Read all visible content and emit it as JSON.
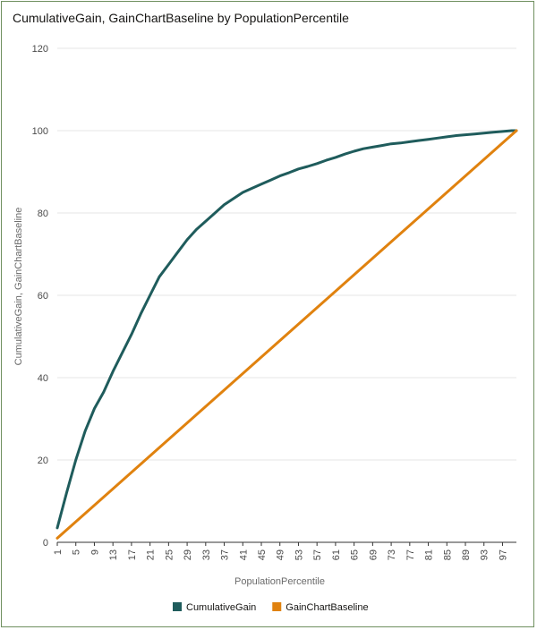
{
  "chart_data": {
    "type": "line",
    "title": "CumulativeGain, GainChartBaseline by PopulationPercentile",
    "xlabel": "PopulationPercentile",
    "ylabel": "CumulativeGain, GainChartBaseline",
    "ylim": [
      0,
      120
    ],
    "yticks": [
      0,
      20,
      40,
      60,
      80,
      100,
      120
    ],
    "xlim": [
      1,
      100
    ],
    "xticks": [
      1,
      5,
      9,
      13,
      17,
      21,
      25,
      29,
      33,
      37,
      41,
      45,
      49,
      53,
      57,
      61,
      65,
      69,
      73,
      77,
      81,
      85,
      89,
      93,
      97
    ],
    "grid": true,
    "legend_position": "bottom",
    "colors": {
      "CumulativeGain": "#1f5c5c",
      "GainChartBaseline": "#e0820f"
    },
    "series": [
      {
        "name": "CumulativeGain",
        "x": [
          1,
          3,
          5,
          7,
          9,
          11,
          13,
          15,
          17,
          19,
          21,
          23,
          25,
          27,
          29,
          31,
          33,
          35,
          37,
          39,
          41,
          43,
          45,
          47,
          49,
          51,
          53,
          55,
          57,
          59,
          61,
          63,
          65,
          67,
          69,
          71,
          73,
          75,
          77,
          79,
          81,
          83,
          85,
          87,
          89,
          91,
          93,
          95,
          97,
          99,
          100
        ],
        "values": [
          3.5,
          12,
          20,
          27,
          32.5,
          36.5,
          41.5,
          46,
          50.5,
          55.5,
          60,
          64.5,
          67.5,
          70.5,
          73.5,
          76,
          78,
          80,
          82,
          83.5,
          85,
          86,
          87,
          88,
          89,
          89.8,
          90.7,
          91.3,
          92,
          92.8,
          93.5,
          94.3,
          95,
          95.6,
          96,
          96.4,
          96.8,
          97,
          97.3,
          97.6,
          97.9,
          98.2,
          98.5,
          98.8,
          99,
          99.2,
          99.4,
          99.6,
          99.8,
          100,
          100
        ]
      },
      {
        "name": "GainChartBaseline",
        "x": [
          1,
          100
        ],
        "values": [
          1,
          100
        ]
      }
    ]
  }
}
